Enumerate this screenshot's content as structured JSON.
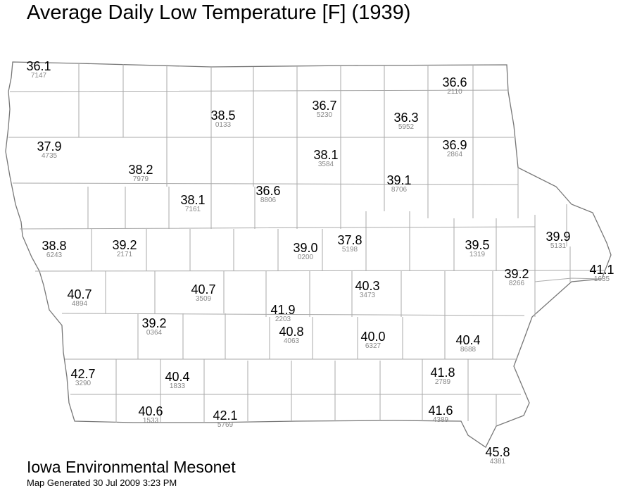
{
  "title": "Average Daily Low Temperature [F] (1939)",
  "footer": {
    "organization": "Iowa Environmental Mesonet",
    "generated": "Map Generated 30 Jul 2009 3:23 PM"
  },
  "colors": {
    "background": "#ffffff",
    "value_text": "#000000",
    "station_id_text": "#888888",
    "county_lines": "#aaaaaa",
    "state_outline": "#777777"
  },
  "stations": [
    {
      "value": "36.1",
      "id": "7147"
    },
    {
      "value": "36.6",
      "id": "2110"
    },
    {
      "value": "38.5",
      "id": "0133"
    },
    {
      "value": "36.7",
      "id": "5230"
    },
    {
      "value": "36.3",
      "id": "5952"
    },
    {
      "value": "37.9",
      "id": "4735"
    },
    {
      "value": "38.1",
      "id": "3584"
    },
    {
      "value": "36.9",
      "id": "2864"
    },
    {
      "value": "38.2",
      "id": "7979"
    },
    {
      "value": "39.1",
      "id": "8706"
    },
    {
      "value": "38.1",
      "id": "7161"
    },
    {
      "value": "36.6",
      "id": "8806"
    },
    {
      "value": "38.8",
      "id": "6243"
    },
    {
      "value": "39.2",
      "id": "2171"
    },
    {
      "value": "39.0",
      "id": "0200"
    },
    {
      "value": "37.8",
      "id": "5198"
    },
    {
      "value": "39.5",
      "id": "1319"
    },
    {
      "value": "39.9",
      "id": "5131"
    },
    {
      "value": "41.1",
      "id": "1635"
    },
    {
      "value": "40.7",
      "id": "4894"
    },
    {
      "value": "40.7",
      "id": "3509"
    },
    {
      "value": "40.3",
      "id": "3473"
    },
    {
      "value": "39.2",
      "id": "8266"
    },
    {
      "value": "41.9",
      "id": "2203"
    },
    {
      "value": "39.2",
      "id": "0364"
    },
    {
      "value": "40.8",
      "id": "4063"
    },
    {
      "value": "40.0",
      "id": "6327"
    },
    {
      "value": "40.4",
      "id": "8688"
    },
    {
      "value": "42.7",
      "id": "3290"
    },
    {
      "value": "40.4",
      "id": "1833"
    },
    {
      "value": "41.8",
      "id": "2789"
    },
    {
      "value": "40.6",
      "id": "1533"
    },
    {
      "value": "42.1",
      "id": "5769"
    },
    {
      "value": "41.6",
      "id": "4389"
    },
    {
      "value": "45.8",
      "id": "4381"
    }
  ]
}
